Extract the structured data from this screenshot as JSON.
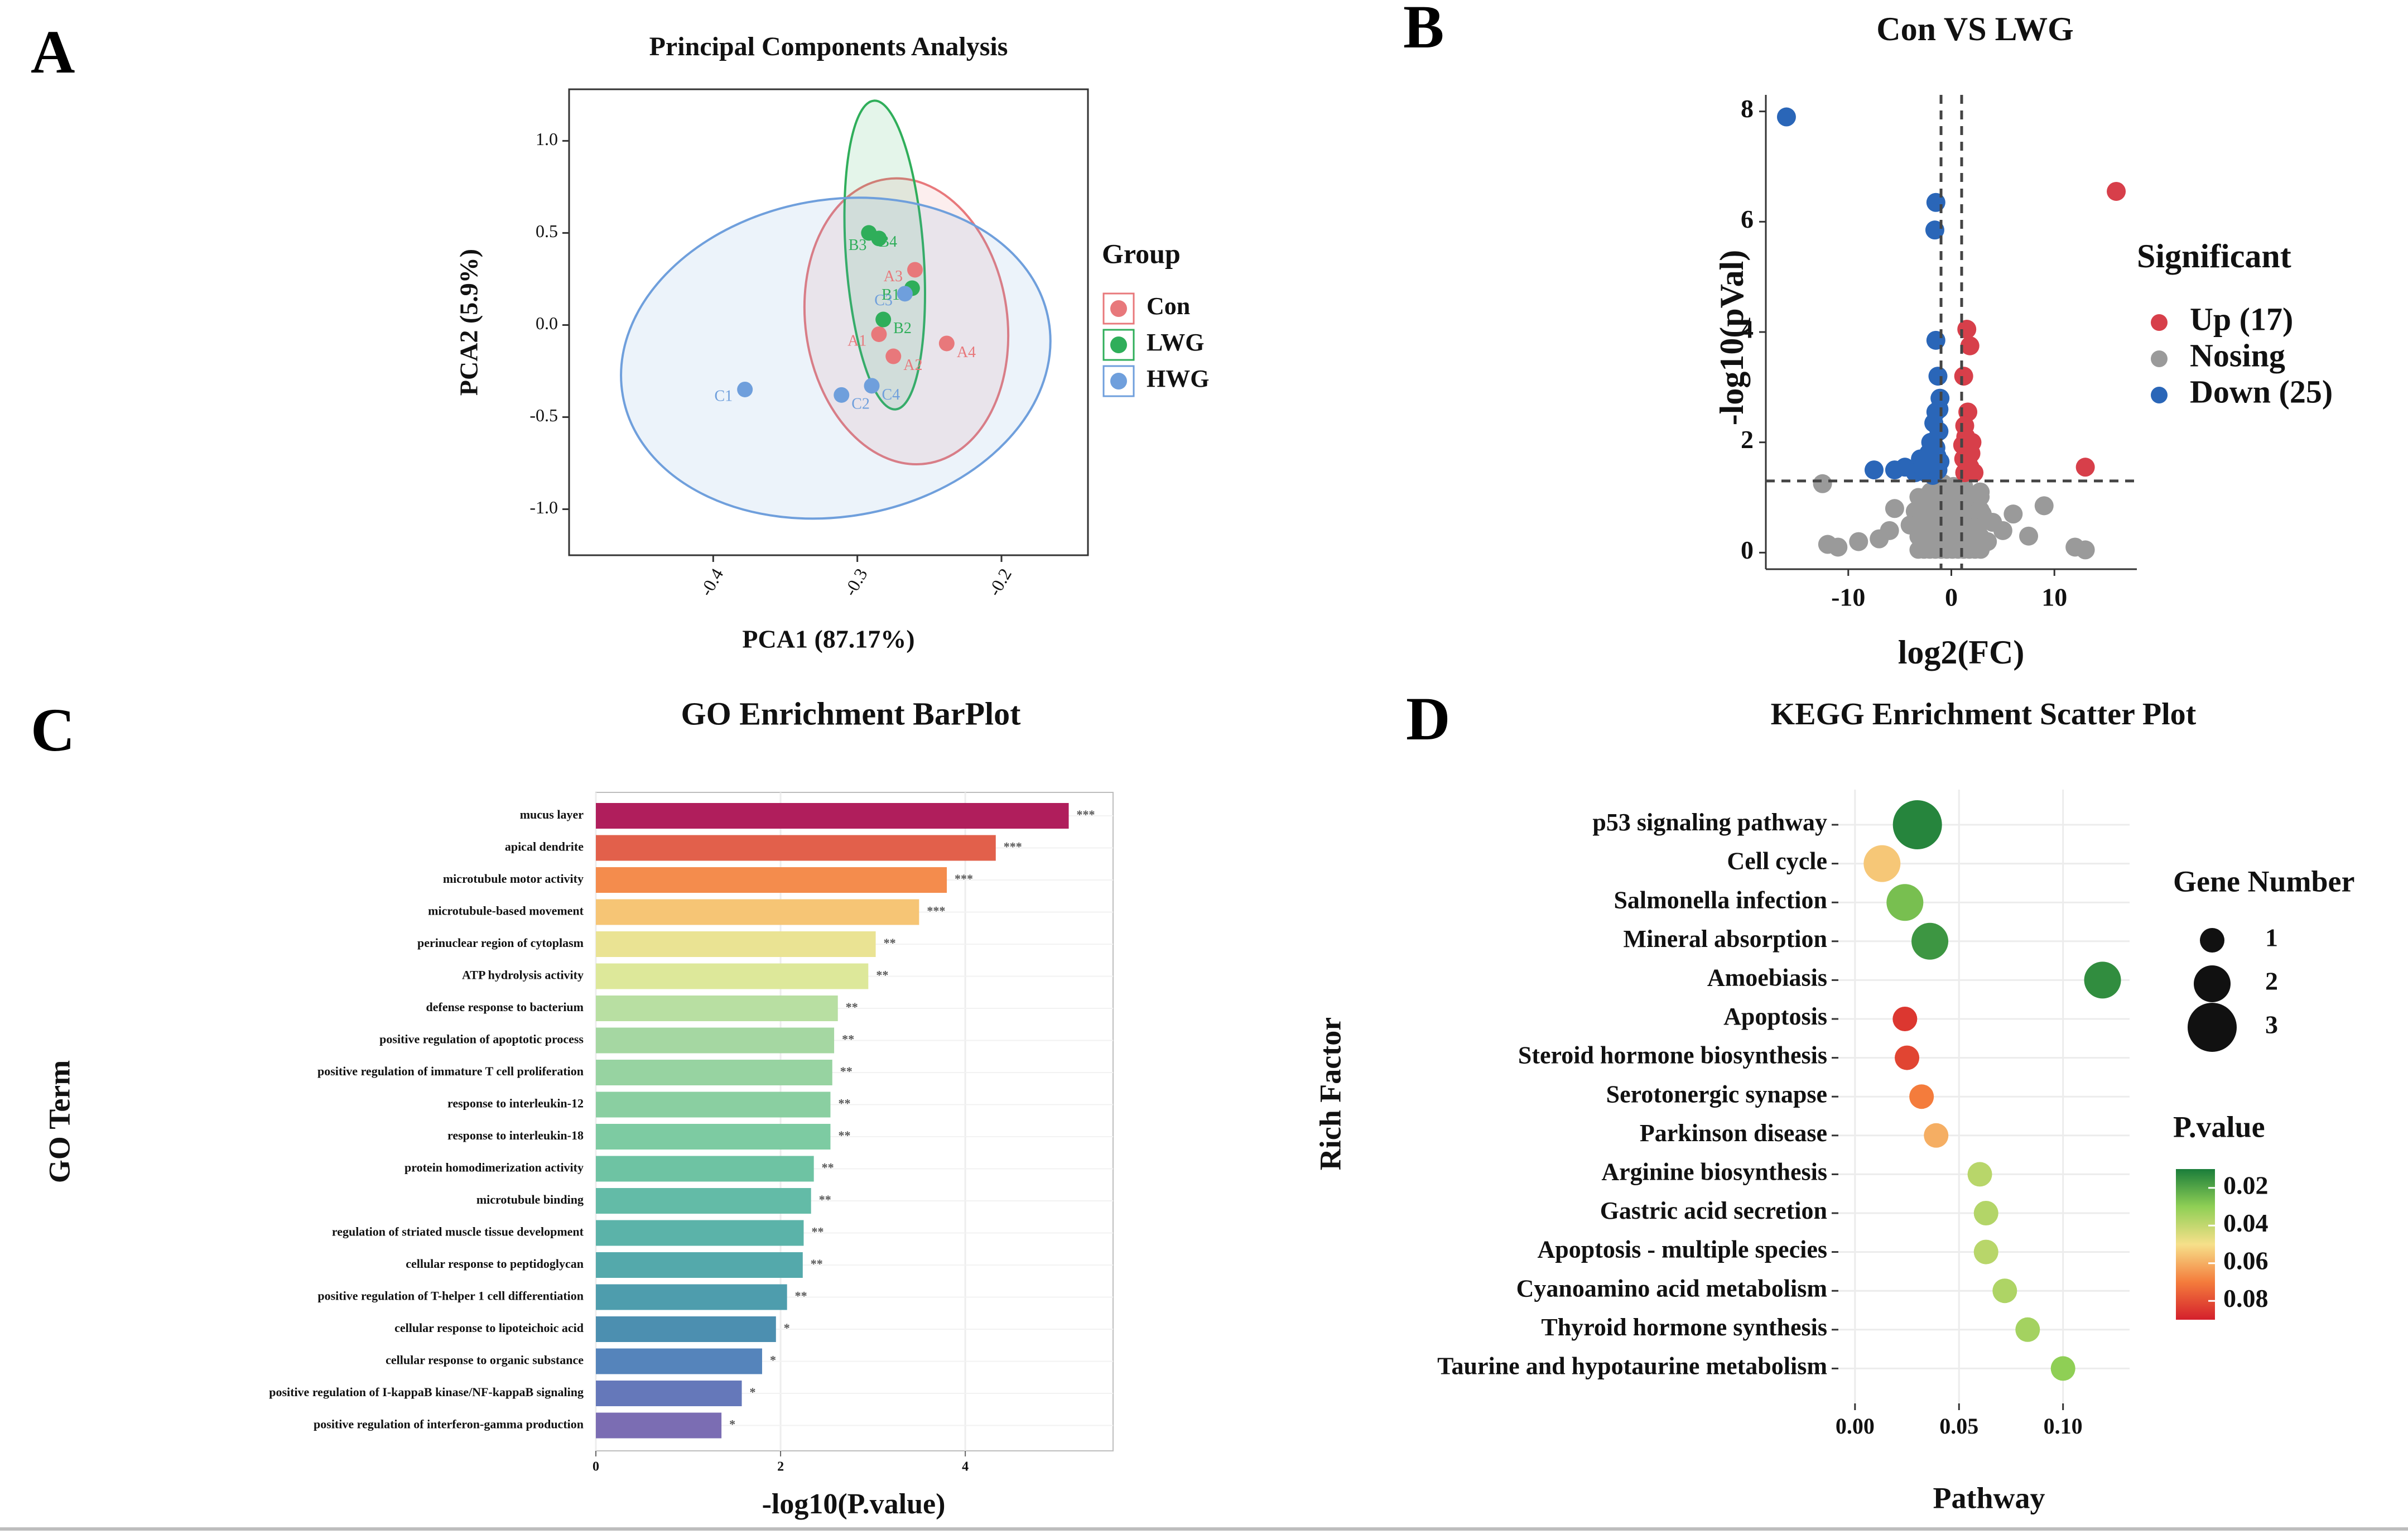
{
  "panels": {
    "A": {
      "letter": "A"
    },
    "B": {
      "letter": "B"
    },
    "C": {
      "letter": "C"
    },
    "D": {
      "letter": "D"
    }
  },
  "chart_data": [
    {
      "id": "A",
      "type": "scatter",
      "title": "Principal Components Analysis",
      "xlabel": "PCA1 (87.17%)",
      "ylabel": "PCA2 (5.9%)",
      "xlim": [
        -0.5,
        -0.14
      ],
      "ylim": [
        -1.25,
        1.28
      ],
      "xticks": [
        -0.4,
        -0.3,
        -0.2
      ],
      "xtick_labels": [
        "-0.4",
        "-0.3",
        "-0.2"
      ],
      "yticks": [
        1.0,
        0.5,
        0.0,
        -0.5,
        -1.0
      ],
      "ytick_labels": [
        "1.0",
        "0.5",
        "0.0",
        "-0.5",
        "-1.0"
      ],
      "legend_title": "Group",
      "series": [
        {
          "name": "Con",
          "color": "#e8787b",
          "points": [
            {
              "label": "A1",
              "x": -0.285,
              "y": -0.05
            },
            {
              "label": "A2",
              "x": -0.275,
              "y": -0.17
            },
            {
              "label": "A3",
              "x": -0.26,
              "y": 0.3
            },
            {
              "label": "A4",
              "x": -0.238,
              "y": -0.1
            }
          ],
          "ellipse": {
            "cx": -0.266,
            "cy": 0.02,
            "rx": 0.07,
            "ry": 0.78,
            "angle": -8
          }
        },
        {
          "name": "LWG",
          "color": "#2fae5a",
          "points": [
            {
              "label": "B1",
              "x": -0.262,
              "y": 0.2
            },
            {
              "label": "B2",
              "x": -0.282,
              "y": 0.03
            },
            {
              "label": "B3",
              "x": -0.285,
              "y": 0.47
            },
            {
              "label": "B4",
              "x": -0.292,
              "y": 0.5
            }
          ],
          "ellipse": {
            "cx": -0.281,
            "cy": 0.38,
            "rx": 0.027,
            "ry": 0.84,
            "angle": -4
          }
        },
        {
          "name": "HWG",
          "color": "#6f9fdc",
          "points": [
            {
              "label": "C1",
              "x": -0.378,
              "y": -0.35
            },
            {
              "label": "C2",
              "x": -0.311,
              "y": -0.38
            },
            {
              "label": "C3",
              "x": -0.267,
              "y": 0.17
            },
            {
              "label": "C4",
              "x": -0.29,
              "y": -0.33
            }
          ],
          "ellipse": {
            "cx": -0.315,
            "cy": -0.18,
            "rx": 0.15,
            "ry": 0.86,
            "angle": -10
          }
        }
      ]
    },
    {
      "id": "B",
      "type": "scatter",
      "title": "Con VS LWG",
      "xlabel": "log2(FC)",
      "ylabel": "-log10(pVal)",
      "xlim": [
        -18,
        18
      ],
      "ylim": [
        -0.3,
        8.3
      ],
      "xticks": [
        -10,
        0,
        10
      ],
      "xtick_labels": [
        "-10",
        "0",
        "10"
      ],
      "yticks": [
        0,
        2,
        4,
        6,
        8
      ],
      "ytick_labels": [
        "0",
        "2",
        "4",
        "6",
        "8"
      ],
      "thresholds": {
        "x": [
          -1,
          1
        ],
        "y": 1.3
      },
      "legend_title": "Significant",
      "legend": [
        {
          "label": "Up (17)",
          "color": "#d73f4a"
        },
        {
          "label": "Nosing",
          "color": "#9a9a9a"
        },
        {
          "label": "Down (25)",
          "color": "#2a66b8"
        }
      ],
      "up": [
        [
          16,
          6.55
        ],
        [
          13,
          1.55
        ],
        [
          1.5,
          4.05
        ],
        [
          1.8,
          3.75
        ],
        [
          1.2,
          3.2
        ],
        [
          1.6,
          2.55
        ],
        [
          1.3,
          2.3
        ],
        [
          2.0,
          2.0
        ],
        [
          1.5,
          1.85
        ],
        [
          1.2,
          1.7
        ],
        [
          1.8,
          1.55
        ],
        [
          1.3,
          1.45
        ],
        [
          2.2,
          1.45
        ],
        [
          1.1,
          1.95
        ],
        [
          1.6,
          1.65
        ],
        [
          1.4,
          2.1
        ],
        [
          1.9,
          1.8
        ]
      ],
      "down": [
        [
          -16,
          7.9
        ],
        [
          -1.5,
          6.35
        ],
        [
          -1.6,
          5.85
        ],
        [
          -1.5,
          3.85
        ],
        [
          -1.3,
          3.2
        ],
        [
          -1.1,
          2.8
        ],
        [
          -1.5,
          2.55
        ],
        [
          -1.2,
          2.2
        ],
        [
          -2.0,
          2.0
        ],
        [
          -1.5,
          1.9
        ],
        [
          -3.0,
          1.7
        ],
        [
          -4.5,
          1.55
        ],
        [
          -1.3,
          1.5
        ],
        [
          -2.5,
          1.45
        ],
        [
          -1.8,
          1.4
        ],
        [
          -5.5,
          1.5
        ],
        [
          -7.5,
          1.5
        ],
        [
          -1.1,
          1.65
        ],
        [
          -2.2,
          1.8
        ],
        [
          -1.4,
          1.75
        ],
        [
          -3.5,
          1.45
        ],
        [
          -1.7,
          2.35
        ],
        [
          -1.2,
          2.6
        ],
        [
          -2.8,
          1.55
        ],
        [
          -1.6,
          1.6
        ]
      ],
      "ns": [
        [
          -12.5,
          1.25
        ],
        [
          -12,
          0.15
        ],
        [
          -11,
          0.1
        ],
        [
          -9,
          0.2
        ],
        [
          -6,
          0.4
        ],
        [
          -5.5,
          0.8
        ],
        [
          -4,
          0.5
        ],
        [
          -3,
          0.3
        ],
        [
          -2.5,
          0.9
        ],
        [
          -2,
          1.1
        ],
        [
          -1.5,
          0.6
        ],
        [
          -1,
          0.2
        ],
        [
          -0.5,
          1.0
        ],
        [
          0,
          0.4
        ],
        [
          0.5,
          0.8
        ],
        [
          1,
          0.1
        ],
        [
          1.5,
          0.5
        ],
        [
          2,
          0.9
        ],
        [
          2.5,
          0.3
        ],
        [
          3,
          0.7
        ],
        [
          3.5,
          0.2
        ],
        [
          4,
          0.55
        ],
        [
          5,
          0.4
        ],
        [
          6,
          0.7
        ],
        [
          7.5,
          0.3
        ],
        [
          9,
          0.85
        ],
        [
          12,
          0.1
        ],
        [
          13,
          0.05
        ],
        [
          -7,
          0.25
        ],
        [
          -3.5,
          0.75
        ],
        [
          0.2,
          1.2
        ],
        [
          -0.8,
          1.25
        ],
        [
          1.2,
          1.2
        ],
        [
          -1.8,
          0.35
        ],
        [
          2.8,
          1.1
        ]
      ]
    },
    {
      "id": "C",
      "type": "bar",
      "orientation": "horizontal",
      "title": "GO Enrichment BarPlot",
      "xlabel": "-log10(P.value)",
      "ylabel": "GO Term",
      "xlim": [
        0,
        5.6
      ],
      "xticks": [
        0,
        2,
        4
      ],
      "xtick_labels": [
        "0",
        "2",
        "4"
      ],
      "categories": [
        "mucus layer",
        "apical dendrite",
        "microtubule motor activity",
        "microtubule-based movement",
        "perinuclear region of cytoplasm",
        "ATP hydrolysis activity",
        "defense response to bacterium",
        "positive regulation of apoptotic process",
        "positive regulation of immature T cell proliferation",
        "response to interleukin-12",
        "response to interleukin-18",
        "protein homodimerization activity",
        "microtubule binding",
        "regulation of striated muscle tissue development",
        "cellular response to peptidoglycan",
        "positive regulation of T-helper 1 cell differentiation",
        "cellular response to lipoteichoic acid",
        "cellular response to organic substance",
        "positive regulation of I-kappaB kinase/NF-kappaB signaling",
        "positive regulation of interferon-gamma production"
      ],
      "values": [
        5.12,
        4.33,
        3.8,
        3.5,
        3.03,
        2.95,
        2.62,
        2.58,
        2.56,
        2.54,
        2.54,
        2.36,
        2.33,
        2.25,
        2.24,
        2.07,
        1.95,
        1.8,
        1.58,
        1.36
      ],
      "value_labels": [
        "***",
        "***",
        "***",
        "***",
        "**",
        "**",
        "**",
        "**",
        "**",
        "**",
        "**",
        "**",
        "**",
        "**",
        "**",
        "**",
        "*",
        "*",
        "*",
        "*"
      ],
      "colors": [
        "#b01e5c",
        "#e2604b",
        "#f48c4d",
        "#f6c575",
        "#eae393",
        "#dde89a",
        "#b8dfa2",
        "#a5d7a2",
        "#97d3a1",
        "#8acfa1",
        "#7dcba2",
        "#6ec3a3",
        "#63bba7",
        "#5bb3a9",
        "#54a9ab",
        "#4e9dad",
        "#4c8fb0",
        "#5584bb",
        "#6578ba",
        "#7b6db3"
      ]
    },
    {
      "id": "D",
      "type": "scatter",
      "title": "KEGG Enrichment Scatter Plot",
      "xlabel": "Pathway",
      "ylabel": "Rich Factor",
      "xlim": [
        -0.008,
        0.132
      ],
      "xticks": [
        0.0,
        0.05,
        0.1
      ],
      "xtick_labels": [
        "0.00",
        "0.05",
        "0.10"
      ],
      "categories": [
        "p53 signaling pathway",
        "Cell cycle",
        "Salmonella infection",
        "Mineral absorption",
        "Amoebiasis",
        "Apoptosis",
        "Steroid hormone biosynthesis",
        "Serotonergic synapse",
        "Parkinson disease",
        "Arginine biosynthesis",
        "Gastric acid secretion",
        "Apoptosis - multiple species",
        "Cyanoamino acid metabolism",
        "Thyroid hormone synthesis",
        "Taurine and hypotaurine metabolism"
      ],
      "x": [
        0.03,
        0.013,
        0.024,
        0.036,
        0.119,
        0.024,
        0.025,
        0.032,
        0.039,
        0.06,
        0.063,
        0.063,
        0.072,
        0.083,
        0.1
      ],
      "gene_number": [
        3,
        2,
        2,
        2,
        2,
        1,
        1,
        1,
        1,
        1,
        1,
        1,
        1,
        1,
        1
      ],
      "p_value": [
        0.012,
        0.055,
        0.026,
        0.016,
        0.014,
        0.085,
        0.082,
        0.07,
        0.06,
        0.038,
        0.037,
        0.038,
        0.036,
        0.034,
        0.03
      ],
      "size_legend_title": "Gene Number",
      "size_legend": [
        {
          "label": "1",
          "size": 1
        },
        {
          "label": "2",
          "size": 2
        },
        {
          "label": "3",
          "size": 3
        }
      ],
      "color_legend_title": "P.value",
      "color_legend_ticks": [
        0.02,
        0.04,
        0.06,
        0.08
      ],
      "color_legend_labels": [
        "0.02",
        "0.04",
        "0.06",
        "0.08"
      ],
      "p_range": [
        0.01,
        0.09
      ],
      "color_stops": [
        "#1a7d3a",
        "#8fcf55",
        "#f6e08a",
        "#f47c3c",
        "#d4202c"
      ]
    }
  ]
}
